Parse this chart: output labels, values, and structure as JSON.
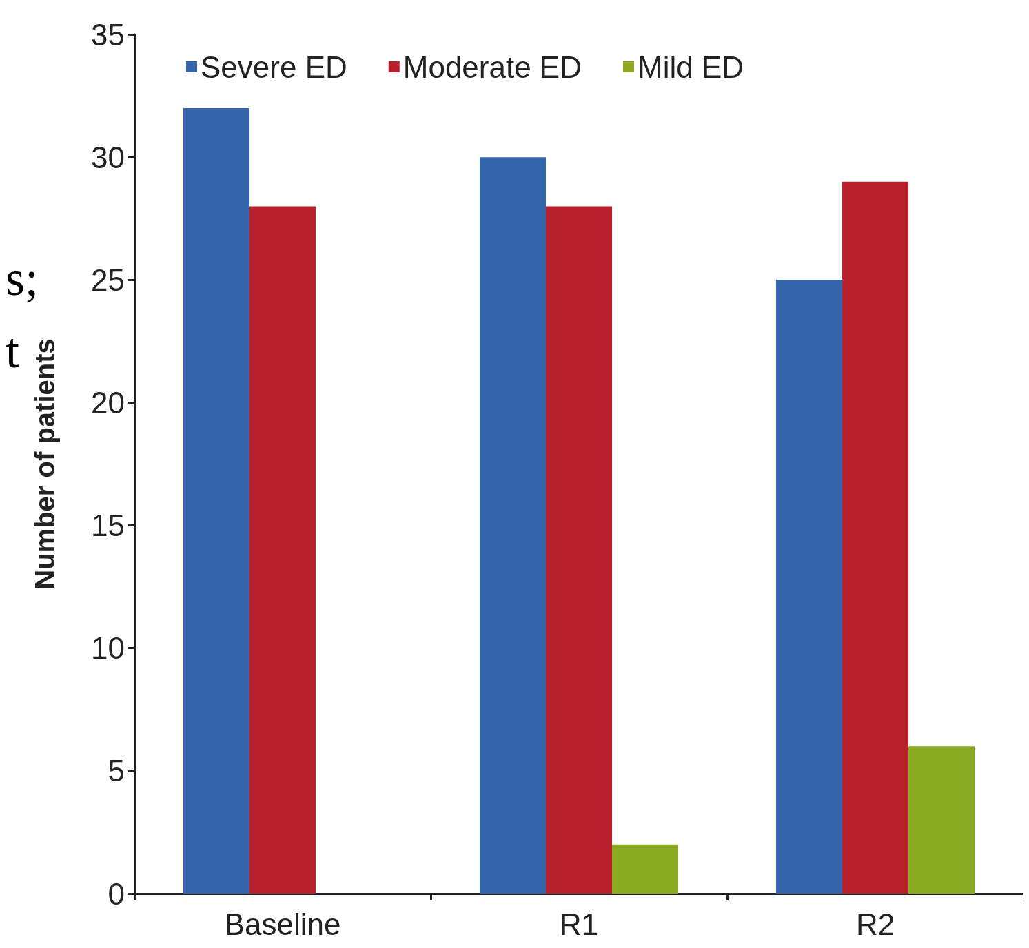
{
  "chart_data": {
    "type": "bar",
    "ylabel": "Number of patients",
    "categories": [
      "Baseline",
      "R1",
      "R2"
    ],
    "series": [
      {
        "name": "Severe ED",
        "color": "#3465ab",
        "values": [
          32,
          30,
          25
        ]
      },
      {
        "name": "Moderate ED",
        "color": "#b8202c",
        "values": [
          28,
          28,
          29
        ]
      },
      {
        "name": "Mild ED",
        "color": "#8aaa22",
        "values": [
          null,
          2,
          6
        ]
      }
    ],
    "ylim": [
      0,
      35
    ],
    "yticks": [
      0,
      5,
      10,
      15,
      20,
      25,
      30,
      35
    ],
    "grid": false,
    "legend": "top left",
    "annotations": [
      "s;",
      "t"
    ]
  }
}
